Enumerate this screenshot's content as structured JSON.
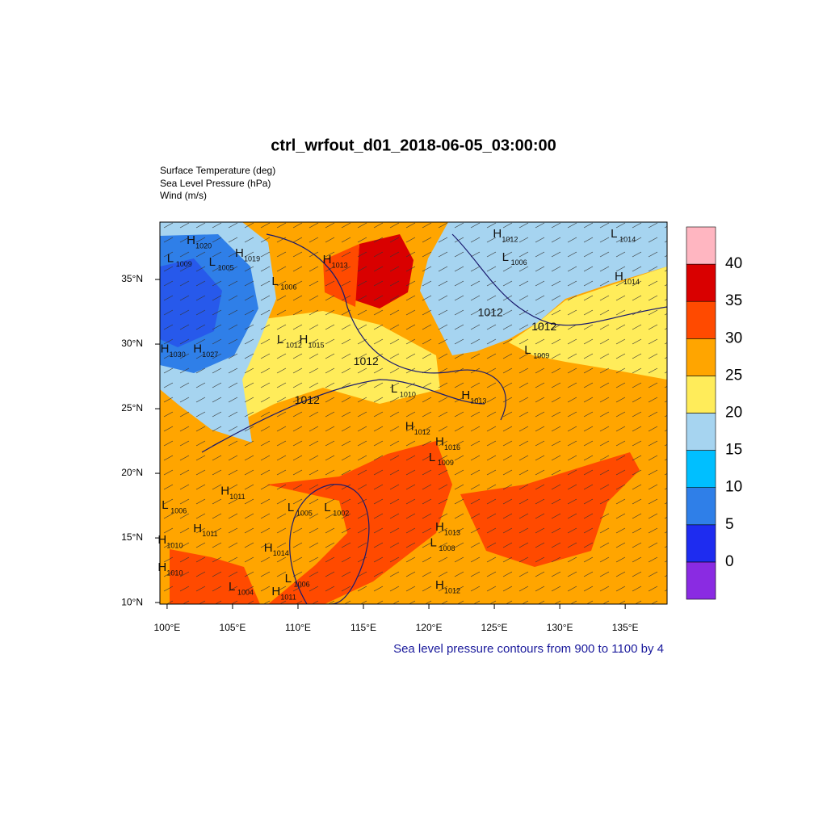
{
  "chart_data": {
    "type": "map",
    "title": "ctrl_wrfout_d01_2018-06-05_03:00:00",
    "subtitle": [
      "Surface Temperature (deg)",
      "Sea Level Pressure (hPa)",
      "Wind (m/s)"
    ],
    "footnote": "Sea level pressure contours from 900 to 1100 by 4",
    "xlim": [
      99.45,
      138.2
    ],
    "ylim": [
      9.88,
      39.44
    ],
    "xticks": [
      {
        "value": 100,
        "label": "100°E"
      },
      {
        "value": 105,
        "label": "105°E"
      },
      {
        "value": 110,
        "label": "110°E"
      },
      {
        "value": 115,
        "label": "115°E"
      },
      {
        "value": 120,
        "label": "120°E"
      },
      {
        "value": 125,
        "label": "125°E"
      },
      {
        "value": 130,
        "label": "130°E"
      },
      {
        "value": 135,
        "label": "135°E"
      }
    ],
    "yticks": [
      {
        "value": 10,
        "label": "10°N"
      },
      {
        "value": 15,
        "label": "15°N"
      },
      {
        "value": 20,
        "label": "20°N"
      },
      {
        "value": 25,
        "label": "25°N"
      },
      {
        "value": 30,
        "label": "30°N"
      },
      {
        "value": 35,
        "label": "35°N"
      }
    ],
    "colorbar": {
      "levels": [
        0,
        5,
        10,
        15,
        20,
        25,
        30,
        35,
        40
      ],
      "colors": [
        "#8a2be2",
        "#1e2cf0",
        "#2f7fe8",
        "#00bfff",
        "#a6d4f0",
        "#ffec5a",
        "#ffa500",
        "#ff4a00",
        "#d90000",
        "#ffb6c1"
      ]
    },
    "pressure_centers": [
      {
        "kind": "H",
        "value": 1020,
        "lon": 101.8,
        "lat": 38.0
      },
      {
        "kind": "L",
        "value": 1009,
        "lon": 100.3,
        "lat": 36.6
      },
      {
        "kind": "L",
        "value": 1005,
        "lon": 103.5,
        "lat": 36.3
      },
      {
        "kind": "H",
        "value": 1019,
        "lon": 105.5,
        "lat": 37.0
      },
      {
        "kind": "H",
        "value": 1013,
        "lon": 112.2,
        "lat": 36.5
      },
      {
        "kind": "L",
        "value": 1006,
        "lon": 108.3,
        "lat": 34.8
      },
      {
        "kind": "L",
        "value": 1012,
        "lon": 108.7,
        "lat": 30.3
      },
      {
        "kind": "H",
        "value": 1015,
        "lon": 110.4,
        "lat": 30.3
      },
      {
        "kind": "H",
        "value": 1030,
        "lon": 99.8,
        "lat": 29.6
      },
      {
        "kind": "H",
        "value": 1027,
        "lon": 102.3,
        "lat": 29.6
      },
      {
        "kind": "L",
        "value": 1010,
        "lon": 117.4,
        "lat": 26.5
      },
      {
        "kind": "H",
        "value": 1013,
        "lon": 122.8,
        "lat": 26.0
      },
      {
        "kind": "H",
        "value": 1012,
        "lon": 118.5,
        "lat": 23.6
      },
      {
        "kind": "H",
        "value": 1016,
        "lon": 120.8,
        "lat": 22.4
      },
      {
        "kind": "L",
        "value": 1009,
        "lon": 120.3,
        "lat": 21.2
      },
      {
        "kind": "L",
        "value": 1009,
        "lon": 127.6,
        "lat": 29.5
      },
      {
        "kind": "H",
        "value": 1012,
        "lon": 125.2,
        "lat": 38.5
      },
      {
        "kind": "L",
        "value": 1006,
        "lon": 125.9,
        "lat": 36.7
      },
      {
        "kind": "L",
        "value": 1014,
        "lon": 134.2,
        "lat": 38.5
      },
      {
        "kind": "H",
        "value": 1014,
        "lon": 134.5,
        "lat": 35.2
      },
      {
        "kind": "H",
        "value": 1011,
        "lon": 104.4,
        "lat": 18.6
      },
      {
        "kind": "L",
        "value": 1006,
        "lon": 99.9,
        "lat": 17.5
      },
      {
        "kind": "H",
        "value": 1011,
        "lon": 102.3,
        "lat": 15.7
      },
      {
        "kind": "H",
        "value": 1010,
        "lon": 99.6,
        "lat": 14.8
      },
      {
        "kind": "H",
        "value": 1014,
        "lon": 107.7,
        "lat": 14.2
      },
      {
        "kind": "H",
        "value": 1010,
        "lon": 99.6,
        "lat": 12.7
      },
      {
        "kind": "L",
        "value": 1004,
        "lon": 105.0,
        "lat": 11.2
      },
      {
        "kind": "L",
        "value": 1006,
        "lon": 109.3,
        "lat": 11.8
      },
      {
        "kind": "H",
        "value": 1011,
        "lon": 108.3,
        "lat": 10.8
      },
      {
        "kind": "L",
        "value": 1005,
        "lon": 109.5,
        "lat": 17.3
      },
      {
        "kind": "L",
        "value": 1002,
        "lon": 112.3,
        "lat": 17.3
      },
      {
        "kind": "H",
        "value": 1013,
        "lon": 120.8,
        "lat": 15.8
      },
      {
        "kind": "L",
        "value": 1008,
        "lon": 120.4,
        "lat": 14.6
      },
      {
        "kind": "H",
        "value": 1012,
        "lon": 120.8,
        "lat": 11.3
      }
    ],
    "contour_labels": [
      {
        "value": 1012,
        "lon": 115.2,
        "lat": 28.6
      },
      {
        "value": 1012,
        "lon": 110.7,
        "lat": 25.6
      },
      {
        "value": 1012,
        "lon": 124.7,
        "lat": 32.4
      },
      {
        "value": 1012,
        "lon": 128.8,
        "lat": 31.3
      }
    ]
  }
}
